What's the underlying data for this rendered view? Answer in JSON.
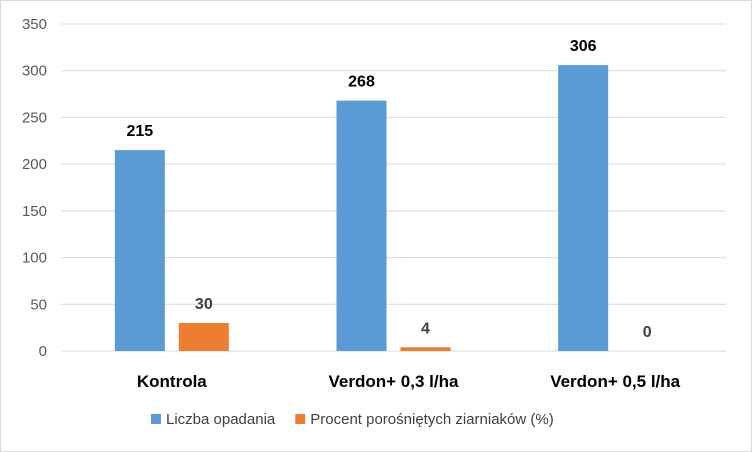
{
  "chart_data": {
    "type": "bar",
    "categories": [
      "Kontrola",
      "Verdon+ 0,3 l/ha",
      "Verdon+ 0,5 l/ha"
    ],
    "series": [
      {
        "name": "Liczba opadania",
        "values": [
          215,
          268,
          306
        ],
        "color": "#5b9bd5"
      },
      {
        "name": "Procent porośniętych ziarniaków (%)",
        "values": [
          30,
          4,
          0
        ],
        "color": "#ed7d31"
      }
    ],
    "yticks": [
      0,
      50,
      100,
      150,
      200,
      250,
      300,
      350
    ],
    "ylim": [
      0,
      350
    ],
    "grid": true,
    "legend_position": "bottom",
    "data_label_colors": [
      "#000000",
      "#404040"
    ]
  }
}
